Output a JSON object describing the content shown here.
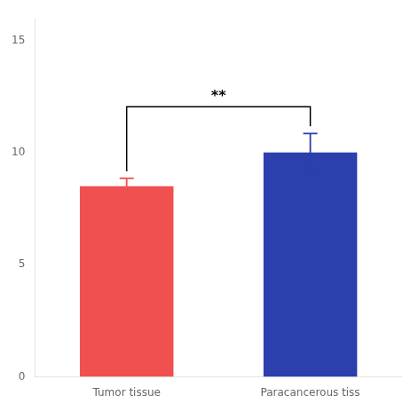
{
  "chart_data": {
    "type": "bar",
    "categories": [
      "Tumor tissue",
      "Paracancerous tiss"
    ],
    "values": [
      8.5,
      10.0
    ],
    "errors": [
      0.35,
      0.85
    ],
    "colors": [
      "#f05050",
      "#2b3fad"
    ],
    "ylim": [
      0,
      16
    ],
    "yticks": [
      0,
      5,
      10,
      15
    ],
    "annotation": "**",
    "grid": false
  }
}
